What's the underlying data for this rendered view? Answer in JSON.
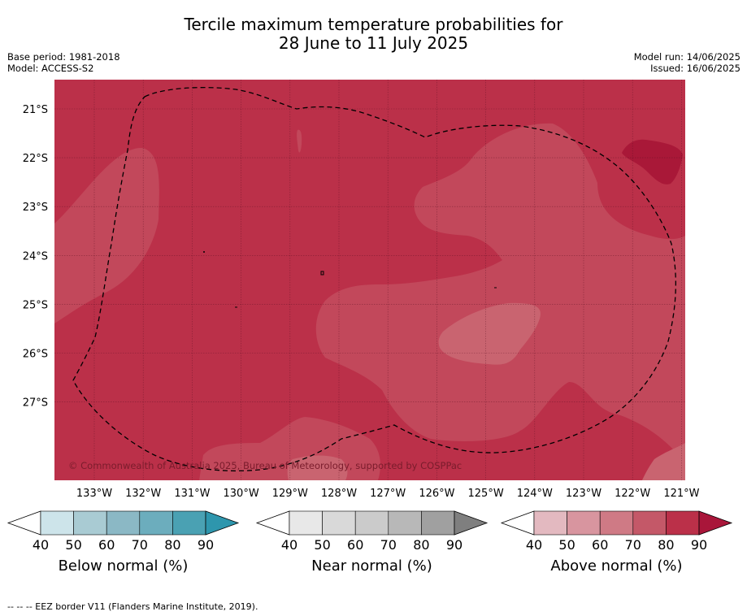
{
  "title_line1": "Tercile maximum temperature probabilities for",
  "title_line2": "28 June to 11 July 2025",
  "base_period": "Base period: 1981-2018",
  "model": "Model: ACCESS-S2",
  "model_run": "Model run: 14/06/2025",
  "issued": "Issued: 16/06/2025",
  "copyright": "© Commonwealth of Australia 2025, Bureau of Meteorology, supported by COSPPac",
  "lat_labels": [
    "21°S",
    "22°S",
    "23°S",
    "24°S",
    "25°S",
    "26°S",
    "27°S"
  ],
  "lon_labels": [
    "133°W",
    "132°W",
    "131°W",
    "130°W",
    "129°W",
    "128°W",
    "127°W",
    "126°W",
    "125°W",
    "124°W",
    "123°W",
    "122°W",
    "121°W"
  ],
  "colorbars": [
    {
      "name": "Below normal (%)",
      "ticks": [
        "40",
        "50",
        "60",
        "70",
        "80",
        "90"
      ],
      "colors": [
        "#cde4ea",
        "#a9cbd3",
        "#8bb8c5",
        "#6cadbd",
        "#4aa1b3",
        "#2e96ad"
      ]
    },
    {
      "name": "Near normal (%)",
      "ticks": [
        "40",
        "50",
        "60",
        "70",
        "80",
        "90"
      ],
      "colors": [
        "#e8e8e8",
        "#d9d9d9",
        "#cbcbcb",
        "#b8b8b8",
        "#a0a0a0",
        "#7f7f7f"
      ]
    },
    {
      "name": "Above normal (%)",
      "ticks": [
        "40",
        "50",
        "60",
        "70",
        "80",
        "90"
      ],
      "colors": [
        "#e3b9c0",
        "#d8959f",
        "#cf7a85",
        "#c45868",
        "#bb3049",
        "#a9163a"
      ]
    }
  ],
  "footnote": "--  --  -- EEZ border V11 (Flanders Marine Institute, 2019).",
  "map_colors": {
    "dominant": "#bb3049",
    "lighter": "#c2485b",
    "lightest": "#c96470",
    "darkest": "#a91838"
  }
}
